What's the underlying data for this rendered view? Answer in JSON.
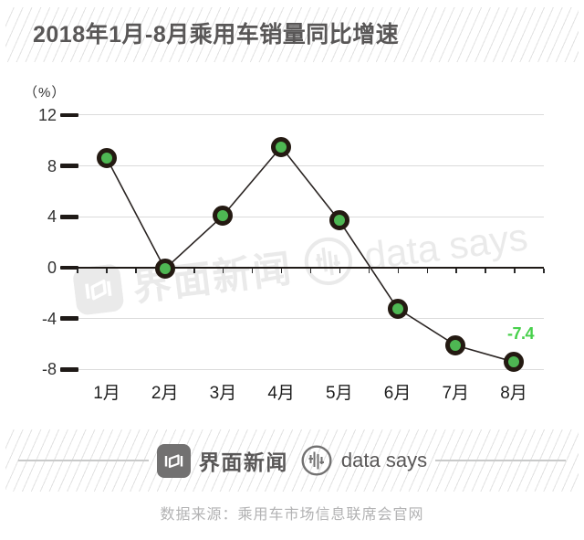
{
  "chart_data": {
    "type": "line",
    "title": "2018年1月-8月乘用车销量同比增速",
    "ylabel": "（%）",
    "xlabel": "",
    "categories": [
      "1月",
      "2月",
      "3月",
      "4月",
      "5月",
      "6月",
      "7月",
      "8月"
    ],
    "values": [
      8.6,
      -0.1,
      4.1,
      9.5,
      3.7,
      -3.2,
      -6.1,
      -7.4
    ],
    "yticks": [
      12,
      8,
      4,
      0,
      -4,
      -8
    ],
    "ylim": [
      -9.8,
      13.2
    ],
    "grid": true,
    "legend_position": "none",
    "annotation": {
      "text": "-7.4",
      "index": 7
    },
    "colors": {
      "point_fill": "#4eb753",
      "point_ring": "#241a12",
      "line": "#2b2523",
      "zero_line": "#1f1a17",
      "grid": "#dbdbdb",
      "annotation": "#47d04b"
    }
  },
  "watermark": {
    "brand": "界面新闻",
    "brand2": "data says"
  },
  "footer": {
    "brand": "界面新闻",
    "brand2": "data says",
    "source": "数据来源：乘用车市场信息联席会官网"
  }
}
